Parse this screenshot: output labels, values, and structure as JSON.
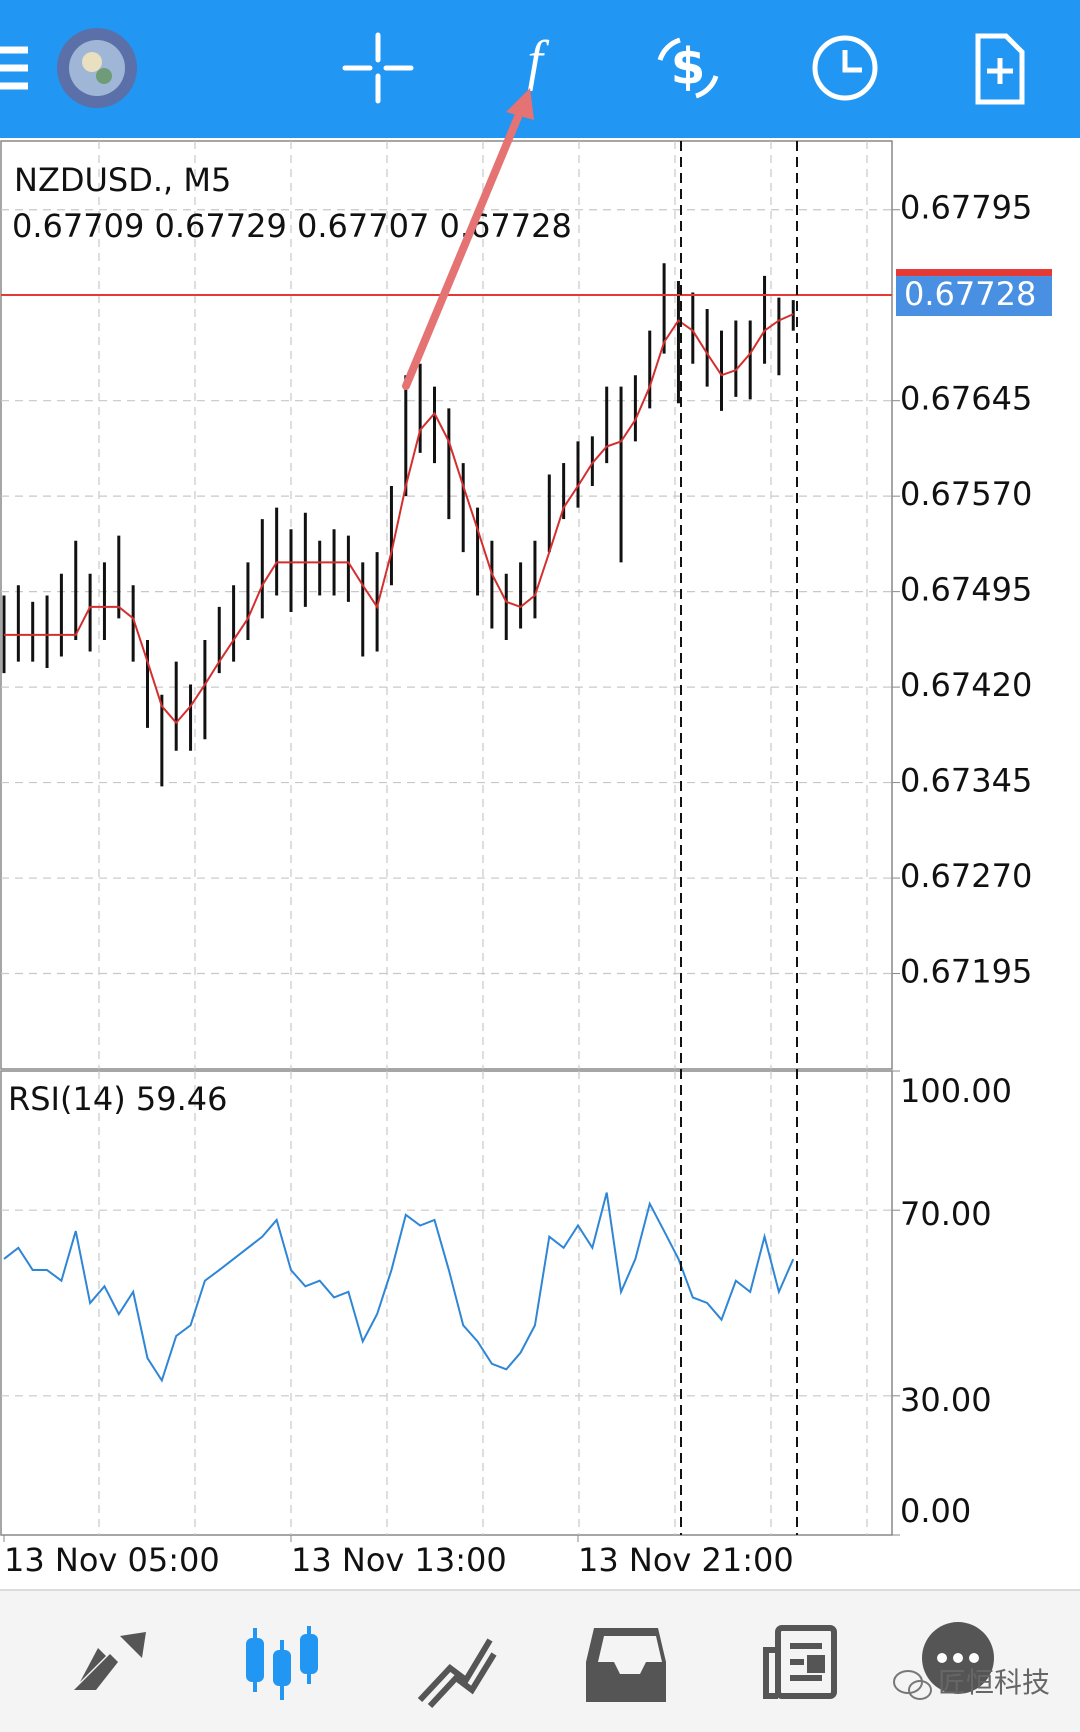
{
  "chart_data": [
    {
      "type": "hilo",
      "title": "NZDUSD., M5",
      "subtitle": "0.67709 0.67729 0.67707 0.67728",
      "categories": [
        "13 Nov 05:00",
        null,
        null,
        null,
        null,
        null,
        null,
        null,
        null,
        null,
        null,
        null,
        null,
        null,
        null,
        null,
        null,
        null,
        null,
        null,
        "13 Nov 13:00",
        null,
        null,
        null,
        null,
        null,
        null,
        null,
        null,
        null,
        null,
        null,
        null,
        null,
        null,
        null,
        null,
        null,
        null,
        null,
        "13 Nov 21:00",
        null,
        null,
        null,
        null,
        null,
        null,
        null,
        null,
        null,
        null,
        null,
        null,
        null,
        null,
        null
      ],
      "high": [
        0.67492,
        0.675,
        0.67487,
        0.67492,
        0.67509,
        0.67535,
        0.67509,
        0.67518,
        0.67539,
        0.675,
        0.67457,
        0.67414,
        0.6744,
        0.67422,
        0.67457,
        0.67483,
        0.675,
        0.67518,
        0.67552,
        0.67561,
        0.67544,
        0.67557,
        0.67535,
        0.67544,
        0.67539,
        0.67518,
        0.67526,
        0.67578,
        0.67665,
        0.67674,
        0.67656,
        0.67639,
        0.67596,
        0.67561,
        0.67535,
        0.67509,
        0.67518,
        0.67535,
        0.67587,
        0.67596,
        0.67613,
        0.67617,
        0.67656,
        0.67656,
        0.67665,
        0.677,
        0.67753,
        0.67739,
        0.6773,
        0.67717,
        0.677,
        0.67708,
        0.67708,
        0.67743,
        0.67726,
        0.67724
      ],
      "low": [
        0.67431,
        0.6744,
        0.6744,
        0.67435,
        0.67444,
        0.67457,
        0.67448,
        0.67457,
        0.67474,
        0.6744,
        0.67388,
        0.67342,
        0.6737,
        0.6737,
        0.67379,
        0.67431,
        0.6744,
        0.67457,
        0.67474,
        0.67492,
        0.67479,
        0.67483,
        0.67492,
        0.67492,
        0.67487,
        0.67444,
        0.67448,
        0.675,
        0.6757,
        0.67604,
        0.67596,
        0.67552,
        0.67526,
        0.67492,
        0.67466,
        0.67457,
        0.67466,
        0.67474,
        0.67526,
        0.67552,
        0.67561,
        0.67578,
        0.67596,
        0.67518,
        0.67613,
        0.67639,
        0.67682,
        0.67643,
        0.67674,
        0.67656,
        0.67637,
        0.67648,
        0.67646,
        0.67674,
        0.67665,
        0.677
      ],
      "bar_color": "#111111",
      "ma_values": [
        0.67461,
        0.67461,
        0.67461,
        0.67461,
        0.67461,
        0.67461,
        0.67483,
        0.67483,
        0.67483,
        0.67474,
        0.6744,
        0.67405,
        0.67392,
        0.67405,
        0.67422,
        0.6744,
        0.67457,
        0.67474,
        0.675,
        0.67518,
        0.67518,
        0.67518,
        0.67518,
        0.67518,
        0.67518,
        0.675,
        0.67483,
        0.67526,
        0.67578,
        0.67622,
        0.67635,
        0.67613,
        0.67578,
        0.67544,
        0.67509,
        0.67487,
        0.67483,
        0.67492,
        0.67526,
        0.67561,
        0.67578,
        0.67596,
        0.67609,
        0.67613,
        0.6763,
        0.67656,
        0.67691,
        0.67708,
        0.677,
        0.67682,
        0.67665,
        0.67669,
        0.67682,
        0.677,
        0.67708,
        0.67713
      ],
      "ma_color": "#d32f2f",
      "current_price": 0.67728,
      "current_price_color": "#e53935",
      "current_price_label_color": "#4a90e2",
      "ylim": [
        0.6712,
        0.67849
      ],
      "yticks": [
        0.67795,
        0.67645,
        {
          "value": 0.6757,
          "label": "0.67570"
        },
        0.67495,
        {
          "value": 0.6742,
          "label": "0.67420"
        },
        0.67345,
        {
          "value": 0.6727,
          "label": "0.67270"
        },
        0.67195
      ],
      "grid": true
    },
    {
      "type": "line",
      "title": "RSI(14) 59.46",
      "values": [
        59.5,
        61.9,
        57.1,
        57.1,
        54.8,
        65.5,
        50.0,
        53.6,
        47.6,
        52.4,
        38.1,
        33.3,
        42.9,
        45.2,
        54.8,
        57.1,
        59.5,
        61.9,
        64.3,
        67.9,
        57.1,
        53.6,
        54.8,
        51.2,
        52.4,
        41.7,
        47.6,
        57.1,
        69.0,
        66.7,
        67.9,
        57.1,
        45.2,
        41.7,
        36.9,
        35.7,
        39.3,
        45.2,
        64.3,
        61.9,
        66.7,
        61.9,
        73.8,
        52.4,
        59.5,
        71.4,
        65.5,
        59.5,
        51.2,
        50.0,
        46.4,
        54.8,
        52.4,
        64.3,
        52.4,
        59.46
      ],
      "color": "#2f86d6",
      "ylim": [
        0,
        100
      ],
      "yticks": [
        {
          "value": 100,
          "label": "100.00"
        },
        {
          "value": 70,
          "label": "70.00"
        },
        {
          "value": 30,
          "label": "30.00"
        },
        {
          "value": 0,
          "label": "0.00"
        }
      ],
      "grid_values": [
        70,
        30
      ]
    }
  ],
  "watermark": "匠恒科技"
}
